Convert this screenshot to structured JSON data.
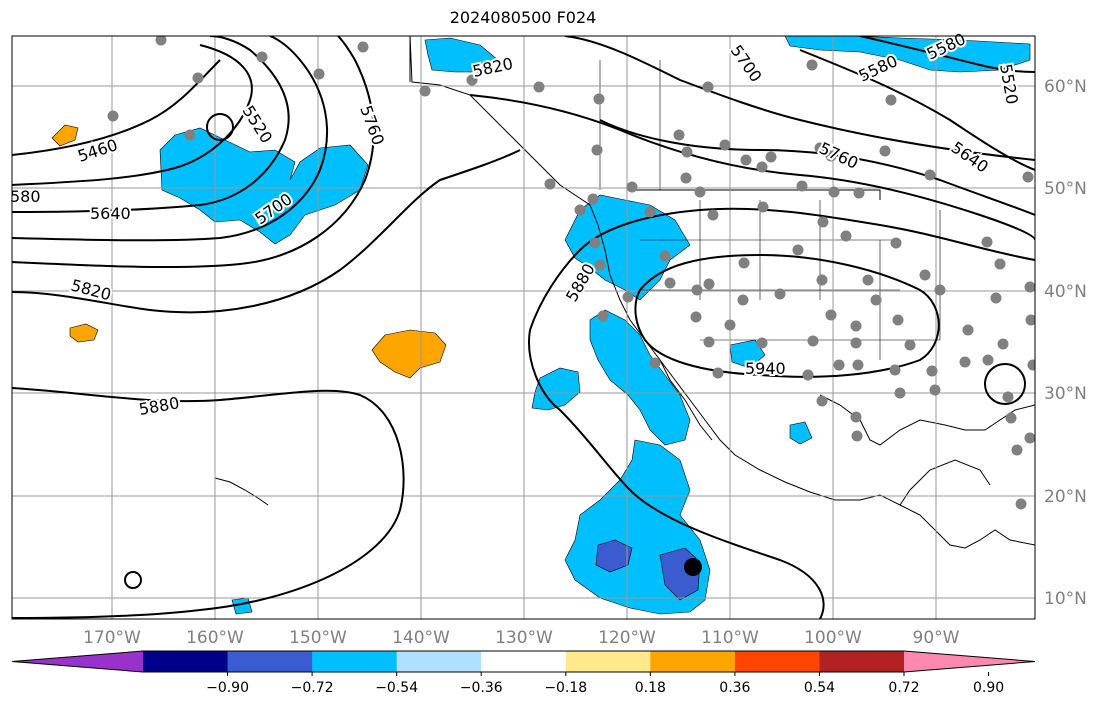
{
  "title": "2024080500 F024",
  "map": {
    "lon_labels": [
      "170°W",
      "160°W",
      "150°W",
      "140°W",
      "130°W",
      "120°W",
      "110°W",
      "100°W",
      "90°W"
    ],
    "lat_labels": [
      "60°N",
      "50°N",
      "40°N",
      "30°N",
      "20°N",
      "10°N"
    ],
    "contour_labels": [
      "5460",
      "580",
      "5640",
      "5700",
      "5520",
      "5760",
      "5820",
      "5820",
      "5880",
      "5880",
      "5940",
      "5700",
      "5580",
      "5580",
      "5520",
      "5640",
      "5760"
    ],
    "colors": {
      "contour": "#000000",
      "grid": "#999999",
      "negative_fill": "#00bfff",
      "negative_deep": "#3b5bd0",
      "positive_fill": "#ffa500",
      "station_dot": "#808080"
    }
  },
  "colorbar": {
    "ticks": [
      "−0.90",
      "−0.72",
      "−0.54",
      "−0.36",
      "−0.18",
      "0.18",
      "0.36",
      "0.54",
      "0.72",
      "0.90"
    ],
    "colors": [
      "#9932cc",
      "#00008b",
      "#3b5bd0",
      "#00bfff",
      "#b0e0ff",
      "#ffffff",
      "#ffe98a",
      "#ffa500",
      "#ff4500",
      "#b22222",
      "#ff88b0"
    ]
  }
}
